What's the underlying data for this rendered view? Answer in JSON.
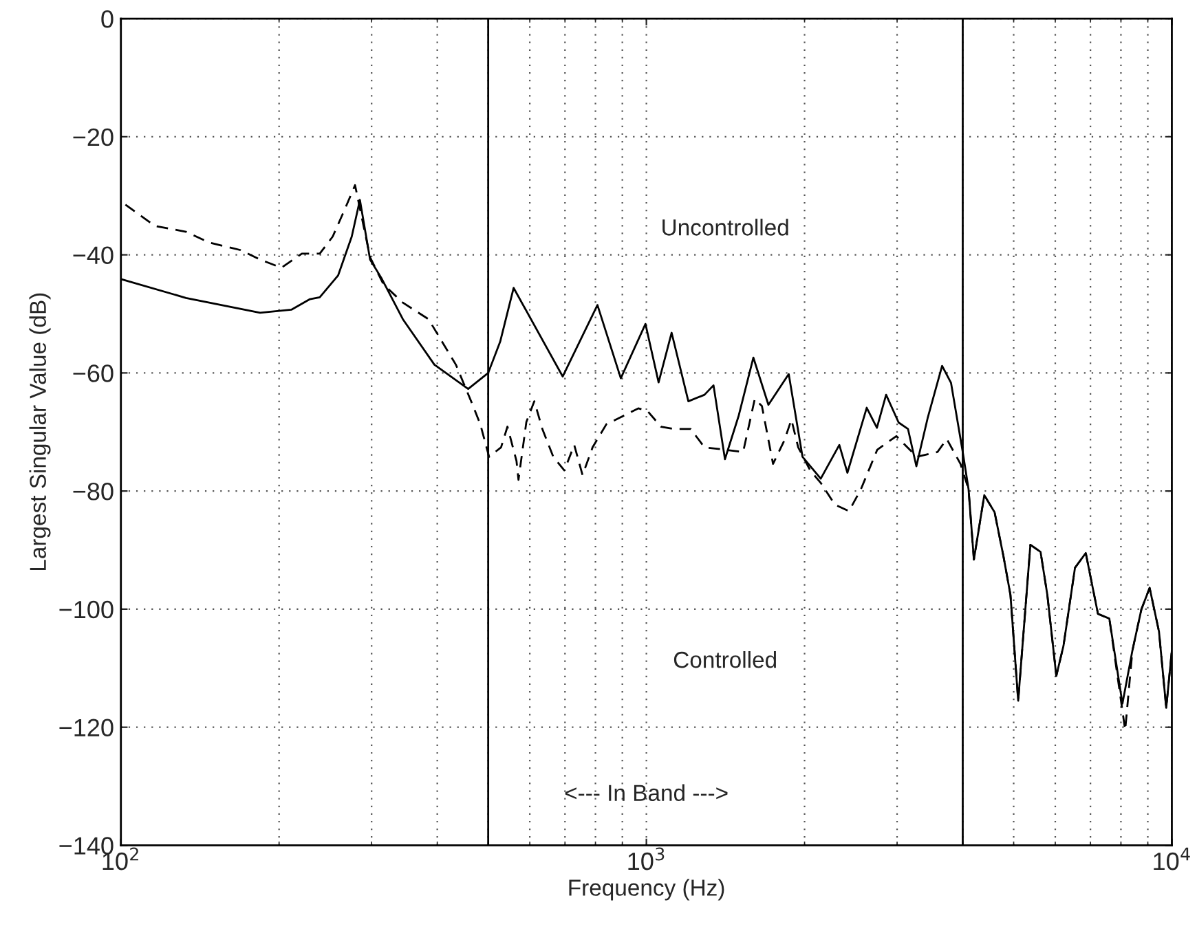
{
  "chart_data": {
    "type": "line",
    "xlabel": "Frequency (Hz)",
    "ylabel": "Largest Singular Value (dB)",
    "log": "x",
    "grid": true,
    "legend": false,
    "marker": "none",
    "xlim": [
      100,
      10000
    ],
    "xticks": [
      {
        "value": 100,
        "label": "10$^{2}$"
      },
      {
        "value": 1000,
        "label": "10$^{3}$"
      },
      {
        "value": 10000,
        "label": "10$^{4}$"
      }
    ],
    "ylim": [
      -140,
      0
    ],
    "yticks": [
      {
        "value": -140,
        "label": "−140"
      },
      {
        "value": -120,
        "label": "−120"
      },
      {
        "value": -100,
        "label": "−100"
      },
      {
        "value": -80,
        "label": "−80"
      },
      {
        "value": -60,
        "label": "−60"
      },
      {
        "value": -40,
        "label": "−40"
      },
      {
        "value": -20,
        "label": "−20"
      },
      {
        "value": 0,
        "label": "0"
      }
    ],
    "series": [
      {
        "color": "#000000",
        "line_style": "solid",
        "x": [
          100,
          133,
          184,
          211,
          229,
          239,
          259,
          275,
          285,
          298,
          313,
          344,
          395,
          458,
          500,
          527,
          559,
          693,
          807,
          894,
          996,
          1055,
          1117,
          1202,
          1290,
          1342,
          1411,
          1499,
          1598,
          1707,
          1866,
          1982,
          2147,
          2329,
          2413,
          2626,
          2746,
          2859,
          3020,
          3147,
          3264,
          3433,
          3654,
          3800,
          4000,
          4103,
          4200,
          4396,
          4599,
          4780,
          4930,
          5100,
          5380,
          5625,
          5795,
          6027,
          6220,
          6541,
          6857,
          7234,
          7603,
          8053,
          8413,
          8752,
          9072,
          9452,
          9756,
          10000
        ],
        "values": [
          -44.1,
          -47.3,
          -49.8,
          -49.3,
          -47.5,
          -47.2,
          -43.5,
          -36.9,
          -30.7,
          -40.8,
          -43.9,
          -50.9,
          -58.6,
          -62.7,
          -60,
          -54.7,
          -45.6,
          -60.6,
          -48.5,
          -60.9,
          -51.7,
          -61.6,
          -53.2,
          -64.8,
          -63.7,
          -62.1,
          -74.6,
          -67.2,
          -57.4,
          -65.4,
          -60.2,
          -74.2,
          -77.9,
          -72.2,
          -76.9,
          -65.9,
          -69.3,
          -63.7,
          -68.4,
          -69.5,
          -75.8,
          -67.5,
          -58.8,
          -61.7,
          -73.4,
          -79.7,
          -91.6,
          -80.7,
          -83.6,
          -91,
          -97.6,
          -115.5,
          -89.1,
          -90.3,
          -97.6,
          -111.3,
          -106.2,
          -93,
          -90.5,
          -100.8,
          -101.6,
          -116,
          -107,
          -100,
          -96.4,
          -103.8,
          -116.7,
          -107
        ]
      },
      {
        "color": "#000000",
        "line_style": "dashed",
        "x": [
          102,
          116,
          133,
          147,
          169,
          184,
          202,
          221,
          239,
          253,
          267,
          279,
          298,
          316,
          344,
          385,
          434,
          468,
          483,
          502,
          529,
          544,
          566,
          571,
          591,
          612,
          634,
          665,
          698,
          729,
          756,
          790,
          839,
          908,
          965,
          1004,
          1066,
          1132,
          1214,
          1290,
          1411,
          1528,
          1608,
          1659,
          1742,
          1831,
          1888,
          1945,
          2050,
          2150,
          2284,
          2430,
          2560,
          2750,
          2990,
          3270,
          3580,
          3730,
          3960,
          4103,
          4200,
          4396,
          4599,
          4780,
          4930,
          5100,
          5380,
          5625,
          5795,
          6027,
          6220,
          6541,
          6857,
          7234,
          7603,
          8150,
          8413,
          8752,
          9072,
          9452,
          9756,
          10000
        ],
        "values": [
          -31.5,
          -35.1,
          -36.1,
          -37.9,
          -39.2,
          -40.8,
          -42.2,
          -39.8,
          -39.8,
          -36.9,
          -32.2,
          -28.2,
          -40.4,
          -45,
          -48.1,
          -50.9,
          -58.6,
          -65.6,
          -68.7,
          -74.2,
          -72.6,
          -69.1,
          -74.9,
          -78.1,
          -68.3,
          -64.8,
          -69.5,
          -74.2,
          -76.5,
          -72.2,
          -77.3,
          -72.6,
          -68.7,
          -67.2,
          -66,
          -66.4,
          -69.1,
          -69.5,
          -69.5,
          -72.6,
          -73,
          -73.4,
          -64.4,
          -65.6,
          -75.4,
          -71.4,
          -67.9,
          -72.6,
          -76.5,
          -78.7,
          -82.3,
          -83.4,
          -79.7,
          -73,
          -70.7,
          -74.2,
          -73.4,
          -71.2,
          -75.4,
          -79.7,
          -91.6,
          -80.7,
          -83.6,
          -91,
          -97.6,
          -115.5,
          -89.1,
          -90.3,
          -97.6,
          -111.3,
          -106.2,
          -93,
          -90.5,
          -100.8,
          -101.6,
          -120.5,
          -107,
          -100,
          -96.4,
          -103.8,
          -116.7,
          -107
        ]
      }
    ],
    "ref_lines": [
      {
        "axis": "x",
        "value": 500,
        "color": "#000000",
        "line_style": "solid"
      },
      {
        "axis": "x",
        "value": 4000,
        "color": "#000000",
        "line_style": "solid"
      }
    ],
    "annotations": [
      "Uncontrolled",
      "Controlled",
      "<--- In Band --->"
    ]
  }
}
